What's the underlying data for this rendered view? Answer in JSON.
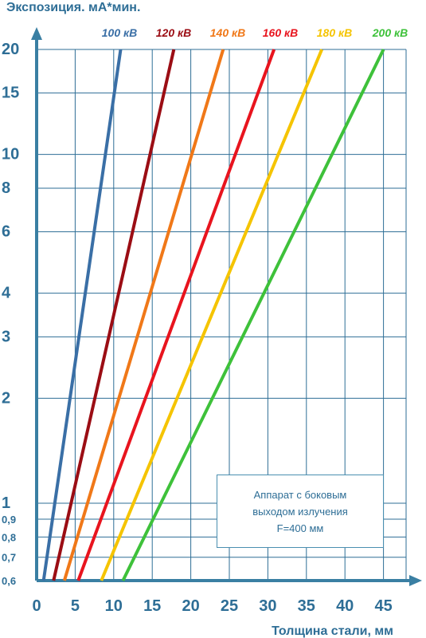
{
  "chart_data": {
    "type": "line",
    "title": "",
    "ylabel": "Экспозиция. мА*мин.",
    "xlabel": "Толщина стали, мм",
    "xlim": [
      0,
      47
    ],
    "ylim": [
      0.6,
      20
    ],
    "y_scale": "log",
    "x_ticks": [
      "0",
      "5",
      "10",
      "15",
      "20",
      "25",
      "30",
      "35",
      "40",
      "45"
    ],
    "y_ticks": [
      {
        "value": 20,
        "label": "20"
      },
      {
        "value": 15,
        "label": "15"
      },
      {
        "value": 10,
        "label": "10"
      },
      {
        "value": 8,
        "label": "8"
      },
      {
        "value": 6,
        "label": "6"
      },
      {
        "value": 4,
        "label": "4"
      },
      {
        "value": 3,
        "label": "3"
      },
      {
        "value": 2,
        "label": "2"
      },
      {
        "value": 1,
        "label": "1"
      },
      {
        "value": 0.9,
        "label": "0,9"
      },
      {
        "value": 0.8,
        "label": "0,8"
      },
      {
        "value": 0.7,
        "label": "0,7"
      },
      {
        "value": 0.6,
        "label": "0,6"
      }
    ],
    "grid": true,
    "legend_position": "top",
    "series": [
      {
        "name": "100 кВ",
        "color": "#3a6fa6",
        "x": [
          0.9,
          10.9
        ],
        "y": [
          0.6,
          20
        ]
      },
      {
        "name": "120 кВ",
        "color": "#9b0d14",
        "x": [
          2.2,
          17.8
        ],
        "y": [
          0.6,
          20
        ]
      },
      {
        "name": "140 кВ",
        "color": "#f07818",
        "x": [
          3.6,
          24.2
        ],
        "y": [
          0.6,
          20
        ]
      },
      {
        "name": "160 кВ",
        "color": "#e8141e",
        "x": [
          5.4,
          30.8
        ],
        "y": [
          0.6,
          20
        ]
      },
      {
        "name": "180 кВ",
        "color": "#f5c400",
        "x": [
          8.4,
          37.0
        ],
        "y": [
          0.6,
          20
        ]
      },
      {
        "name": "200 кВ",
        "color": "#3ec13a",
        "x": [
          11.2,
          45.0
        ],
        "y": [
          0.6,
          20
        ]
      }
    ]
  },
  "note": {
    "line1": "Аппарат с боковым",
    "line2": "выходом излучения",
    "line3": "F=400 мм"
  }
}
